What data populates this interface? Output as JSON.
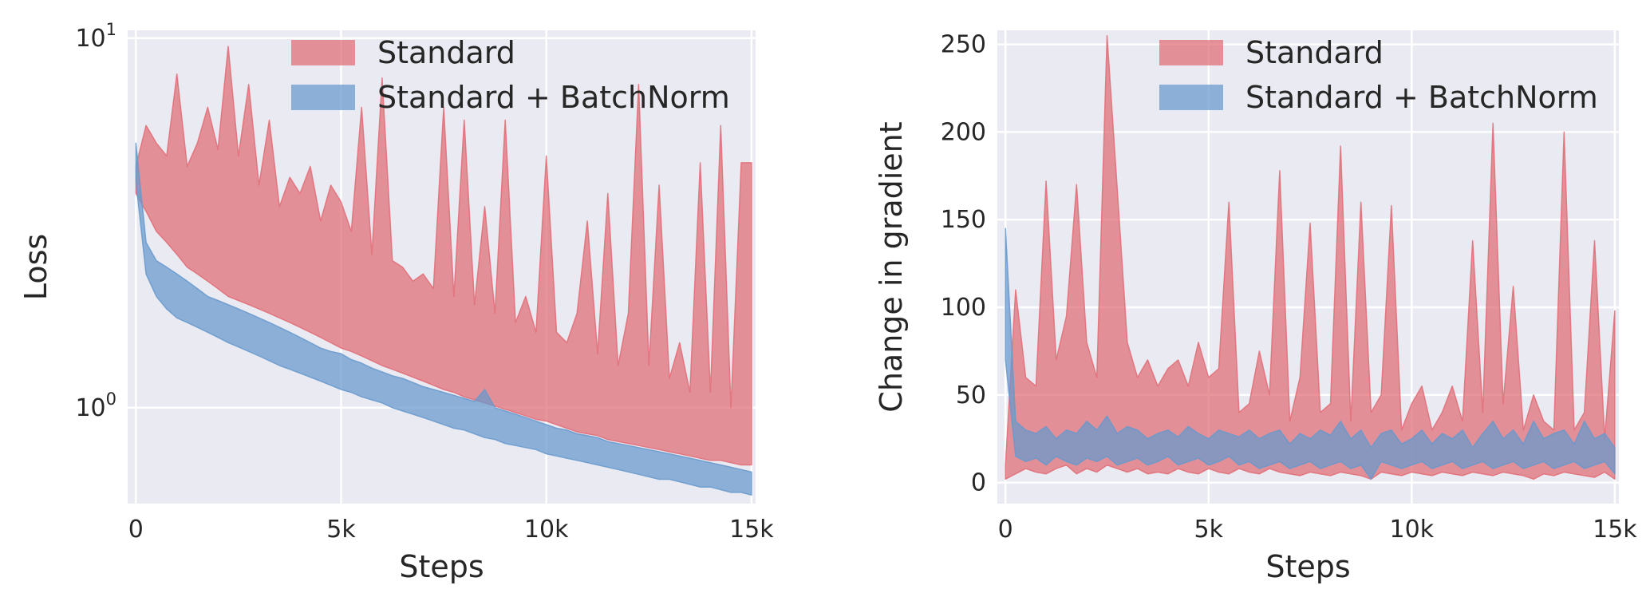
{
  "colors": {
    "standard": "#e06c75",
    "batchnorm": "#6699cc",
    "background": "#eaeaf2",
    "grid": "#ffffff"
  },
  "chart_data": [
    {
      "type": "area",
      "xlabel": "Steps",
      "ylabel": "Loss",
      "yscale": "log",
      "xlim": [
        -200,
        15100
      ],
      "ylim": [
        0.55,
        10.5
      ],
      "xticks": [
        0,
        5000,
        10000,
        15000
      ],
      "xtick_labels": [
        "0",
        "5k",
        "10k",
        "15k"
      ],
      "yticks": [
        1,
        10
      ],
      "ytick_labels": [
        {
          "base": "10",
          "exp": "0"
        },
        {
          "base": "10",
          "exp": "1"
        }
      ],
      "grid": true,
      "legend_position": "top-right",
      "legend": [
        "Standard",
        "Standard + BatchNorm"
      ],
      "series": [
        {
          "name": "Standard",
          "color_key": "standard",
          "x": [
            0,
            250,
            500,
            750,
            1000,
            1250,
            1500,
            1750,
            2000,
            2250,
            2500,
            2750,
            3000,
            3250,
            3500,
            3750,
            4000,
            4250,
            4500,
            4750,
            5000,
            5250,
            5500,
            5750,
            6000,
            6250,
            6500,
            6750,
            7000,
            7250,
            7500,
            7750,
            8000,
            8250,
            8500,
            8750,
            9000,
            9250,
            9500,
            9750,
            10000,
            10250,
            10500,
            10750,
            11000,
            11250,
            11500,
            11750,
            12000,
            12250,
            12500,
            12750,
            13000,
            13250,
            13500,
            13750,
            14000,
            14250,
            14500,
            14750,
            15000
          ],
          "upper": [
            4.5,
            5.8,
            5.2,
            4.8,
            8.0,
            4.5,
            5.2,
            6.5,
            5.0,
            9.5,
            4.8,
            7.5,
            4.0,
            6.0,
            3.5,
            4.2,
            3.8,
            4.5,
            3.2,
            4.0,
            3.6,
            3.0,
            6.5,
            2.6,
            7.8,
            2.5,
            2.4,
            2.2,
            2.3,
            2.1,
            6.5,
            2.0,
            6.0,
            1.9,
            3.5,
            1.8,
            6.0,
            1.7,
            2.0,
            1.6,
            4.8,
            1.6,
            1.5,
            1.8,
            3.2,
            1.4,
            3.8,
            1.3,
            1.8,
            7.5,
            1.3,
            4.0,
            1.2,
            1.5,
            1.1,
            4.6,
            1.1,
            5.8,
            1.0,
            4.6,
            4.6
          ],
          "lower": [
            3.8,
            3.4,
            3.0,
            2.8,
            2.6,
            2.4,
            2.3,
            2.2,
            2.1,
            2.0,
            1.95,
            1.9,
            1.85,
            1.8,
            1.75,
            1.7,
            1.65,
            1.6,
            1.55,
            1.5,
            1.45,
            1.42,
            1.38,
            1.34,
            1.3,
            1.27,
            1.24,
            1.21,
            1.18,
            1.15,
            1.12,
            1.1,
            1.07,
            1.05,
            1.03,
            1.01,
            0.99,
            0.97,
            0.95,
            0.93,
            0.92,
            0.9,
            0.88,
            0.86,
            0.85,
            0.84,
            0.82,
            0.81,
            0.8,
            0.79,
            0.78,
            0.77,
            0.76,
            0.75,
            0.74,
            0.73,
            0.72,
            0.72,
            0.71,
            0.7,
            0.7
          ]
        },
        {
          "name": "Standard + BatchNorm",
          "color_key": "batchnorm",
          "x": [
            0,
            250,
            500,
            750,
            1000,
            1250,
            1500,
            1750,
            2000,
            2250,
            2500,
            2750,
            3000,
            3250,
            3500,
            3750,
            4000,
            4250,
            4500,
            4750,
            5000,
            5250,
            5500,
            5750,
            6000,
            6250,
            6500,
            6750,
            7000,
            7250,
            7500,
            7750,
            8000,
            8250,
            8500,
            8750,
            9000,
            9250,
            9500,
            9750,
            10000,
            10250,
            10500,
            10750,
            11000,
            11250,
            11500,
            11750,
            12000,
            12250,
            12500,
            12750,
            13000,
            13250,
            13500,
            13750,
            14000,
            14250,
            14500,
            14750,
            15000
          ],
          "upper": [
            5.2,
            2.8,
            2.5,
            2.4,
            2.3,
            2.2,
            2.1,
            2.0,
            1.95,
            1.9,
            1.85,
            1.8,
            1.75,
            1.7,
            1.65,
            1.6,
            1.55,
            1.5,
            1.45,
            1.42,
            1.4,
            1.35,
            1.32,
            1.28,
            1.25,
            1.22,
            1.2,
            1.17,
            1.14,
            1.12,
            1.1,
            1.08,
            1.06,
            1.04,
            1.12,
            1.0,
            0.98,
            0.96,
            0.94,
            0.92,
            0.9,
            0.88,
            0.87,
            0.85,
            0.84,
            0.83,
            0.81,
            0.8,
            0.79,
            0.78,
            0.77,
            0.76,
            0.75,
            0.74,
            0.73,
            0.72,
            0.71,
            0.7,
            0.69,
            0.68,
            0.67
          ],
          "lower": [
            4.1,
            2.3,
            2.0,
            1.85,
            1.75,
            1.7,
            1.65,
            1.6,
            1.55,
            1.5,
            1.46,
            1.42,
            1.38,
            1.34,
            1.3,
            1.27,
            1.24,
            1.21,
            1.18,
            1.15,
            1.12,
            1.1,
            1.07,
            1.05,
            1.03,
            1.0,
            0.98,
            0.96,
            0.94,
            0.92,
            0.9,
            0.88,
            0.87,
            0.85,
            0.83,
            0.82,
            0.8,
            0.79,
            0.78,
            0.77,
            0.75,
            0.74,
            0.73,
            0.72,
            0.71,
            0.7,
            0.69,
            0.68,
            0.67,
            0.66,
            0.65,
            0.64,
            0.64,
            0.63,
            0.62,
            0.61,
            0.61,
            0.6,
            0.59,
            0.59,
            0.58
          ]
        }
      ]
    },
    {
      "type": "area",
      "xlabel": "Steps",
      "ylabel": "Change in gradient",
      "yscale": "linear",
      "xlim": [
        -200,
        15100
      ],
      "ylim": [
        -12,
        258
      ],
      "xticks": [
        0,
        5000,
        10000,
        15000
      ],
      "xtick_labels": [
        "0",
        "5k",
        "10k",
        "15k"
      ],
      "yticks": [
        0,
        50,
        100,
        150,
        200,
        250
      ],
      "ytick_labels": [
        "0",
        "50",
        "100",
        "150",
        "200",
        "250"
      ],
      "grid": true,
      "legend_position": "top-right",
      "legend": [
        "Standard",
        "Standard + BatchNorm"
      ],
      "series": [
        {
          "name": "Standard",
          "color_key": "standard",
          "x": [
            0,
            250,
            500,
            750,
            1000,
            1250,
            1500,
            1750,
            2000,
            2250,
            2500,
            2750,
            3000,
            3250,
            3500,
            3750,
            4000,
            4250,
            4500,
            4750,
            5000,
            5250,
            5500,
            5750,
            6000,
            6250,
            6500,
            6750,
            7000,
            7250,
            7500,
            7750,
            8000,
            8250,
            8500,
            8750,
            9000,
            9250,
            9500,
            9750,
            10000,
            10250,
            10500,
            10750,
            11000,
            11250,
            11500,
            11750,
            12000,
            12250,
            12500,
            12750,
            13000,
            13250,
            13500,
            13750,
            14000,
            14250,
            14500,
            14750,
            15000
          ],
          "upper": [
            10,
            110,
            60,
            55,
            172,
            70,
            95,
            170,
            80,
            60,
            255,
            168,
            80,
            60,
            70,
            55,
            65,
            70,
            55,
            80,
            60,
            65,
            160,
            40,
            45,
            75,
            50,
            178,
            35,
            60,
            148,
            40,
            45,
            192,
            35,
            160,
            40,
            50,
            158,
            30,
            45,
            55,
            30,
            40,
            55,
            35,
            138,
            40,
            205,
            45,
            112,
            30,
            50,
            35,
            30,
            200,
            30,
            40,
            138,
            25,
            98
          ],
          "lower": [
            2,
            5,
            8,
            6,
            5,
            8,
            10,
            5,
            8,
            6,
            10,
            8,
            6,
            8,
            5,
            6,
            5,
            8,
            6,
            5,
            8,
            6,
            5,
            8,
            6,
            5,
            8,
            6,
            5,
            4,
            6,
            5,
            4,
            6,
            5,
            4,
            2,
            6,
            5,
            4,
            6,
            5,
            4,
            6,
            5,
            4,
            6,
            5,
            4,
            6,
            5,
            4,
            2,
            5,
            4,
            6,
            5,
            4,
            3,
            6,
            2
          ]
        },
        {
          "name": "Standard + BatchNorm",
          "color_key": "batchnorm",
          "x": [
            0,
            250,
            500,
            750,
            1000,
            1250,
            1500,
            1750,
            2000,
            2250,
            2500,
            2750,
            3000,
            3250,
            3500,
            3750,
            4000,
            4250,
            4500,
            4750,
            5000,
            5250,
            5500,
            5750,
            6000,
            6250,
            6500,
            6750,
            7000,
            7250,
            7500,
            7750,
            8000,
            8250,
            8500,
            8750,
            9000,
            9250,
            9500,
            9750,
            10000,
            10250,
            10500,
            10750,
            11000,
            11250,
            11500,
            11750,
            12000,
            12250,
            12500,
            12750,
            13000,
            13250,
            13500,
            13750,
            14000,
            14250,
            14500,
            14750,
            15000
          ],
          "upper": [
            145,
            35,
            30,
            28,
            32,
            25,
            30,
            28,
            35,
            30,
            38,
            28,
            32,
            30,
            25,
            28,
            30,
            26,
            32,
            28,
            25,
            30,
            28,
            26,
            30,
            25,
            28,
            30,
            22,
            28,
            25,
            30,
            27,
            35,
            25,
            30,
            20,
            28,
            30,
            22,
            25,
            30,
            22,
            28,
            25,
            30,
            20,
            28,
            35,
            25,
            30,
            22,
            35,
            25,
            28,
            30,
            22,
            35,
            25,
            28,
            20
          ],
          "lower": [
            70,
            15,
            12,
            14,
            10,
            15,
            12,
            10,
            14,
            12,
            15,
            10,
            12,
            14,
            10,
            12,
            15,
            10,
            12,
            14,
            10,
            12,
            15,
            10,
            12,
            8,
            10,
            12,
            8,
            10,
            12,
            8,
            10,
            12,
            8,
            10,
            2,
            12,
            10,
            8,
            10,
            12,
            8,
            10,
            12,
            8,
            10,
            12,
            8,
            10,
            12,
            8,
            10,
            12,
            8,
            10,
            12,
            8,
            10,
            12,
            5
          ]
        }
      ]
    }
  ]
}
